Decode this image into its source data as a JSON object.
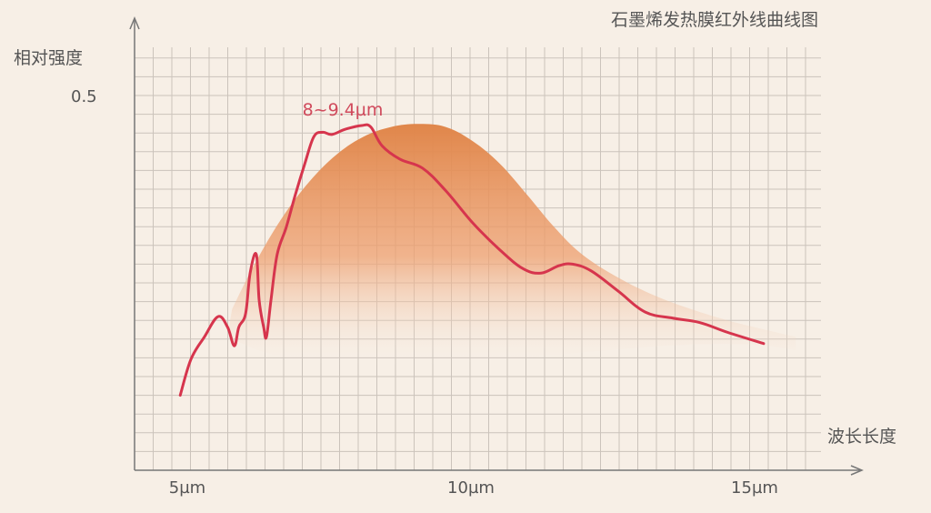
{
  "chart_data": {
    "type": "line",
    "title": "石墨烯发热膜红外线曲线图",
    "ylabel": "相对强度",
    "xlabel": "波长长度",
    "x_ticks": [
      {
        "value": 5,
        "label": "5µm"
      },
      {
        "value": 10,
        "label": "10µm"
      },
      {
        "value": 15,
        "label": "15µm"
      }
    ],
    "y_ticks": [
      {
        "value": 0.5,
        "label": "0.5"
      }
    ],
    "xlim": [
      3.98,
      16.2
    ],
    "ylim": [
      0,
      0.6
    ],
    "grid": true,
    "annotation": {
      "text": "8~9.4µm",
      "x": 8.2,
      "y": 0.48
    },
    "colors": {
      "line": "#d6354d",
      "area": "#e0864a",
      "annotation": "#d04a5c",
      "background": "#f7efe6",
      "grid": "#cbc3bb",
      "axis": "#777777"
    },
    "series": [
      {
        "kind": "line",
        "x": [
          4.81,
          5.0,
          5.24,
          5.48,
          5.65,
          5.77,
          5.85,
          5.97,
          6.05,
          6.16,
          6.21,
          6.29,
          6.34,
          6.42,
          6.53,
          6.69,
          6.85,
          7.02,
          7.18,
          7.34,
          7.5,
          7.74,
          8.03,
          8.19,
          8.39,
          8.71,
          9.11,
          9.52,
          10.0,
          10.48,
          10.89,
          11.21,
          11.53,
          11.77,
          12.1,
          12.58,
          13.06,
          13.55,
          14.03,
          14.52,
          15.16
        ],
        "y": [
          0.1,
          0.148,
          0.178,
          0.205,
          0.191,
          0.166,
          0.191,
          0.209,
          0.263,
          0.288,
          0.227,
          0.191,
          0.178,
          0.227,
          0.288,
          0.324,
          0.367,
          0.409,
          0.445,
          0.451,
          0.448,
          0.455,
          0.46,
          0.458,
          0.433,
          0.415,
          0.403,
          0.373,
          0.33,
          0.294,
          0.269,
          0.263,
          0.273,
          0.275,
          0.266,
          0.239,
          0.211,
          0.203,
          0.197,
          0.184,
          0.169
        ]
      },
      {
        "kind": "area",
        "x": [
          5.73,
          6.13,
          6.61,
          7.1,
          7.58,
          8.06,
          8.55,
          9.03,
          9.52,
          10.0,
          10.48,
          10.97,
          11.45,
          11.94,
          12.58,
          13.23,
          13.87,
          14.52,
          15.16,
          15.73
        ],
        "y": [
          0.215,
          0.275,
          0.336,
          0.385,
          0.421,
          0.445,
          0.458,
          0.462,
          0.458,
          0.439,
          0.409,
          0.367,
          0.324,
          0.288,
          0.257,
          0.233,
          0.215,
          0.2,
          0.188,
          0.178
        ]
      }
    ]
  }
}
